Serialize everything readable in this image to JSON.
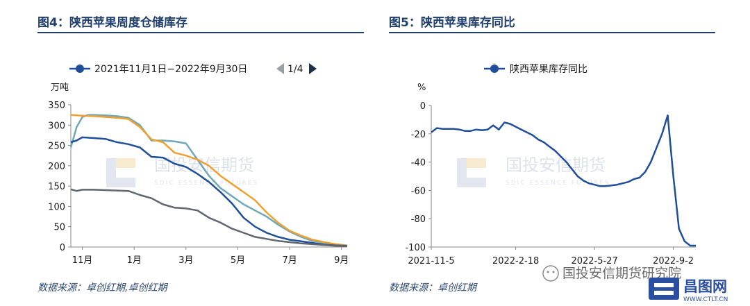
{
  "left": {
    "title": "图4：陕西苹果周度仓储库存",
    "source": "数据来源：卓创红期,卓创红期",
    "legend_label": "2021年11月1日−2022年9月30日",
    "page_indicator": "1/4",
    "ylabel_unit": "万吨"
  },
  "right": {
    "title": "图5：陕西苹果库存同比",
    "source": "数据来源：卓创红期",
    "legend_label": "陕西苹果库存同比",
    "ylabel_unit": "%"
  },
  "watermark": {
    "cn": "国投安信期货",
    "en": "SDIC ESSENCE FUTURES"
  },
  "footer_watermark": {
    "wechat_text": "国投安信期货研究院",
    "brand": "昌图网",
    "url": "WWW.CTLT.CN"
  },
  "colors": {
    "title": "#1f3f6e",
    "navy": "#1f4e9a",
    "teal": "#6fa8b8",
    "orange": "#f0a030",
    "gray": "#5e6670",
    "axis": "#888888"
  },
  "chart_data": [
    {
      "type": "line",
      "ylabel": "万吨",
      "ylim": [
        0,
        350
      ],
      "yticks": [
        0,
        50,
        100,
        150,
        200,
        250,
        300,
        350
      ],
      "xlim": [
        0,
        48
      ],
      "x_tick_labels": [
        "11月",
        "1月",
        "3月",
        "5月",
        "7月",
        "9月"
      ],
      "x_tick_positions": [
        2,
        11,
        20,
        29,
        38,
        47
      ],
      "legend": [
        "2021年11月1日−2022年9月30日"
      ],
      "series": [
        {
          "color": "#6fa8b8",
          "x": [
            0,
            1,
            2,
            3,
            4,
            6,
            8,
            10,
            12,
            14,
            16,
            18,
            20,
            22,
            24,
            26,
            28,
            30,
            32,
            34,
            36,
            38,
            40,
            42,
            44,
            46,
            48
          ],
          "y": [
            245,
            295,
            320,
            325,
            325,
            324,
            322,
            318,
            300,
            262,
            262,
            260,
            255,
            215,
            175,
            145,
            125,
            105,
            90,
            75,
            55,
            38,
            25,
            15,
            10,
            5,
            3
          ]
        },
        {
          "color": "#f0a030",
          "x": [
            0,
            2,
            4,
            6,
            8,
            10,
            12,
            14,
            16,
            18,
            20,
            22,
            24,
            26,
            28,
            30,
            32,
            34,
            36,
            38,
            40,
            42,
            44,
            46,
            48
          ],
          "y": [
            325,
            323,
            322,
            320,
            318,
            315,
            295,
            265,
            258,
            232,
            225,
            215,
            200,
            175,
            155,
            135,
            115,
            85,
            60,
            40,
            28,
            18,
            12,
            7,
            4
          ]
        },
        {
          "color": "#1f4e9a",
          "x": [
            0,
            1,
            2,
            4,
            6,
            8,
            10,
            12,
            14,
            16,
            18,
            20,
            22,
            24,
            26,
            28,
            30,
            32,
            34,
            36,
            38,
            40,
            42,
            44,
            46,
            48
          ],
          "y": [
            258,
            262,
            270,
            268,
            266,
            258,
            253,
            245,
            222,
            220,
            205,
            197,
            180,
            160,
            135,
            107,
            72,
            50,
            35,
            25,
            18,
            14,
            10,
            6,
            4,
            3
          ]
        },
        {
          "color": "#5e6670",
          "x": [
            0,
            1,
            2,
            4,
            6,
            8,
            10,
            12,
            14,
            16,
            18,
            20,
            22,
            24,
            26,
            28,
            30,
            32,
            34,
            36,
            38,
            40,
            42,
            44,
            46,
            48
          ],
          "y": [
            142,
            138,
            141,
            141,
            140,
            139,
            138,
            128,
            120,
            105,
            97,
            95,
            90,
            72,
            60,
            45,
            35,
            25,
            20,
            15,
            12,
            9,
            7,
            5,
            3,
            2
          ]
        }
      ]
    },
    {
      "type": "line",
      "ylabel": "%",
      "ylim": [
        -100,
        0
      ],
      "yticks": [
        0,
        -20,
        -40,
        -60,
        -80,
        -100
      ],
      "x_tick_labels": [
        "2021-11-5",
        "2022-2-18",
        "2022-5-27",
        "2022-9-2"
      ],
      "x_tick_index": [
        0,
        15,
        29,
        43
      ],
      "legend": [
        "陕西苹果库存同比"
      ],
      "series": [
        {
          "name": "陕西苹果库存同比",
          "color": "#1f4e9a",
          "y": [
            -19,
            -16,
            -16.5,
            -16.5,
            -16.5,
            -17,
            -18,
            -18,
            -17,
            -17.5,
            -17,
            -14,
            -17,
            -12,
            -13,
            -15,
            -17,
            -19,
            -21,
            -24,
            -26,
            -29,
            -32,
            -36,
            -40,
            -45,
            -50,
            -53,
            -55,
            -56,
            -57,
            -57,
            -56.5,
            -56,
            -55,
            -54,
            -52,
            -51,
            -47,
            -40,
            -30,
            -20,
            -7,
            -50,
            -87,
            -96,
            -99,
            -99
          ]
        }
      ]
    }
  ]
}
